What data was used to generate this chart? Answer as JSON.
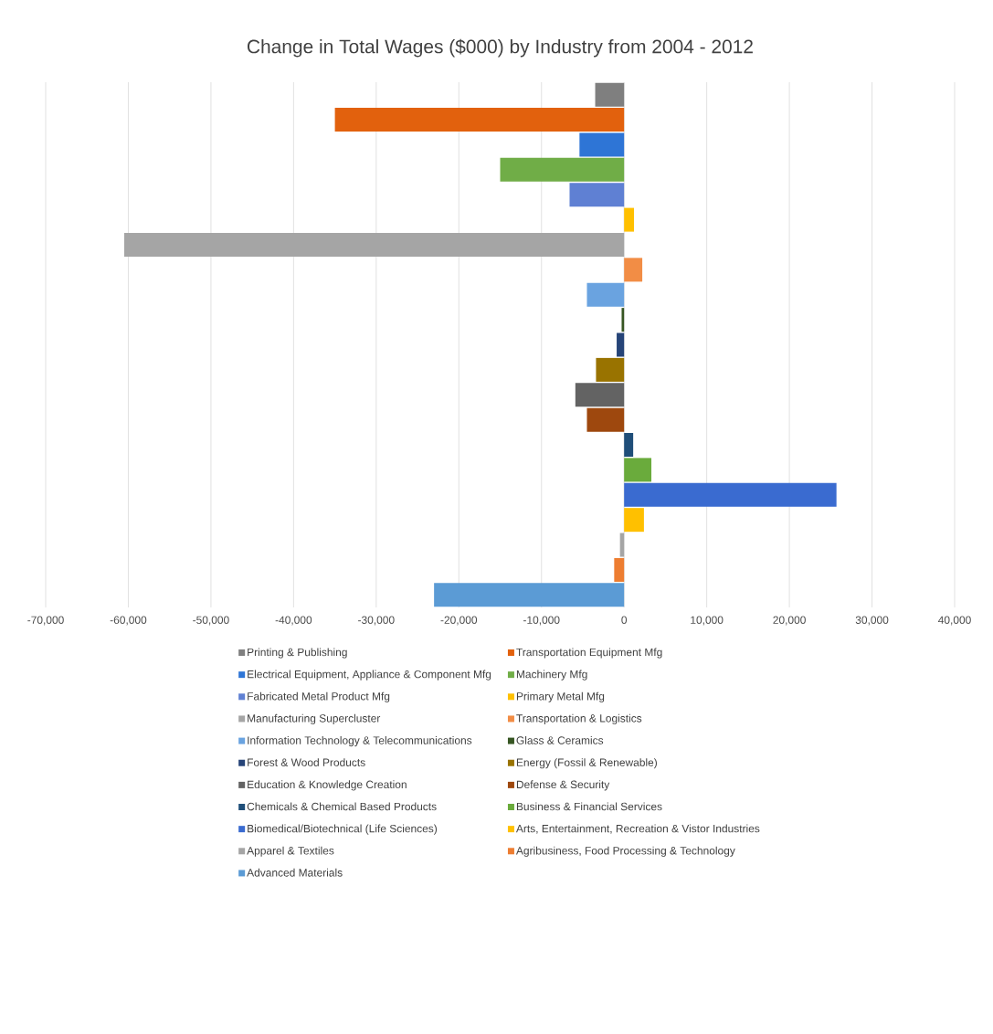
{
  "chart_data": {
    "type": "bar",
    "orientation": "horizontal",
    "title": "Change in Total Wages ($000) by Industry from 2004 - 2012",
    "categories": [
      null
    ],
    "series": [
      {
        "name": "Printing & Publishing",
        "color": "#7f7f7f",
        "values": [
          -3500
        ]
      },
      {
        "name": "Transportation Equipment Mfg",
        "color": "#e2610d",
        "values": [
          -35000
        ]
      },
      {
        "name": "Electrical Equipment, Appliance & Component Mfg",
        "color": "#2e75d6",
        "values": [
          -5400
        ]
      },
      {
        "name": "Machinery Mfg",
        "color": "#70ad47",
        "values": [
          -15000
        ]
      },
      {
        "name": "Fabricated Metal Product Mfg",
        "color": "#5f80d3",
        "values": [
          -6600
        ]
      },
      {
        "name": "Primary Metal Mfg",
        "color": "#ffc000",
        "values": [
          1200
        ]
      },
      {
        "name": "Manufacturing Supercluster",
        "color": "#a5a5a5",
        "values": [
          -60500
        ]
      },
      {
        "name": "Transportation & Logistics",
        "color": "#f28d45",
        "values": [
          2200
        ]
      },
      {
        "name": "Information Technology & Telecommunications",
        "color": "#6aa3e0",
        "values": [
          -4500
        ]
      },
      {
        "name": "Glass & Ceramics",
        "color": "#375623",
        "values": [
          -300
        ]
      },
      {
        "name": "Forest & Wood Products",
        "color": "#264478",
        "values": [
          -900
        ]
      },
      {
        "name": "Energy (Fossil & Renewable)",
        "color": "#997300",
        "values": [
          -3400
        ]
      },
      {
        "name": "Education & Knowledge Creation",
        "color": "#636363",
        "values": [
          -5900
        ]
      },
      {
        "name": "Defense & Security",
        "color": "#9e480e",
        "values": [
          -4500
        ]
      },
      {
        "name": "Chemicals & Chemical Based Products",
        "color": "#1f4e79",
        "values": [
          1100
        ]
      },
      {
        "name": "Business & Financial Services",
        "color": "#6aab3c",
        "values": [
          3300
        ]
      },
      {
        "name": "Biomedical/Biotechnical (Life Sciences)",
        "color": "#3a6bd0",
        "values": [
          25700
        ]
      },
      {
        "name": "Arts, Entertainment, Recreation & Vistor Industries",
        "color": "#ffc000",
        "values": [
          2400
        ]
      },
      {
        "name": "Apparel & Textiles",
        "color": "#a5a5a5",
        "values": [
          -500
        ]
      },
      {
        "name": "Agribusiness, Food Processing & Technology",
        "color": "#ed7d31",
        "values": [
          -1200
        ]
      },
      {
        "name": "Advanced Materials",
        "color": "#5b9bd5",
        "values": [
          -23000
        ]
      }
    ],
    "xlim": [
      -70000,
      40000
    ],
    "xticks": [
      {
        "value": -70000,
        "label": "-70,000"
      },
      {
        "value": -60000,
        "label": "-60,000"
      },
      {
        "value": -50000,
        "label": "-50,000"
      },
      {
        "value": -40000,
        "label": "-40,000"
      },
      {
        "value": -30000,
        "label": "-30,000"
      },
      {
        "value": -20000,
        "label": "-20,000"
      },
      {
        "value": -10000,
        "label": "-10,000"
      },
      0,
      {
        "value": 10000,
        "label": "10,000"
      },
      {
        "value": 20000,
        "label": "20,000"
      },
      {
        "value": 30000,
        "label": "30,000"
      },
      {
        "value": 40000,
        "label": "40,000"
      }
    ],
    "grid": "x",
    "legend": "bottom"
  }
}
